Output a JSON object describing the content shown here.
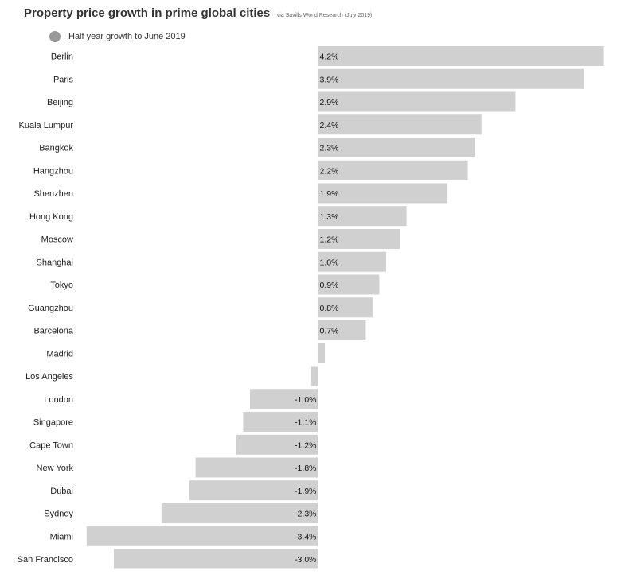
{
  "chart_data": {
    "type": "bar",
    "orientation": "horizontal",
    "title": "Property price growth in prime global cities",
    "subtitle": "via Savills World Research (July 2019)",
    "categories": [
      "Berlin",
      "Paris",
      "Beijing",
      "Kuala Lumpur",
      "Bangkok",
      "Hangzhou",
      "Shenzhen",
      "Hong Kong",
      "Moscow",
      "Shanghai",
      "Tokyo",
      "Guangzhou",
      "Barcelona",
      "Madrid",
      "Los Angeles",
      "London",
      "Singapore",
      "Cape Town",
      "New York",
      "Dubai",
      "Sydney",
      "Miami",
      "San Francisco"
    ],
    "series": [
      {
        "name": "Half year growth to June 2019",
        "values": [
          4.2,
          3.9,
          2.9,
          2.4,
          2.3,
          2.2,
          1.9,
          1.3,
          1.2,
          1.0,
          0.9,
          0.8,
          0.7,
          0.1,
          -0.1,
          -1.0,
          -1.1,
          -1.2,
          -1.8,
          -1.9,
          -2.3,
          -3.4,
          -3.0
        ],
        "labels": [
          "4.2%",
          "3.9%",
          "2.9%",
          "2.4%",
          "2.3%",
          "2.2%",
          "1.9%",
          "1.3%",
          "1.2%",
          "1.0%",
          "0.9%",
          "0.8%",
          "0.7%",
          "",
          "",
          "-1.0%",
          "-1.1%",
          "-1.2%",
          "-1.8%",
          "-1.9%",
          "-2.3%",
          "-3.4%",
          "-3.0%"
        ]
      }
    ],
    "xlim": [
      -3.4,
      4.2
    ],
    "grid": false,
    "legend_position": "top-left",
    "colors": {
      "bar": "#d0d0d0",
      "legend": "#999999",
      "axis": "#bbbbbb"
    }
  }
}
